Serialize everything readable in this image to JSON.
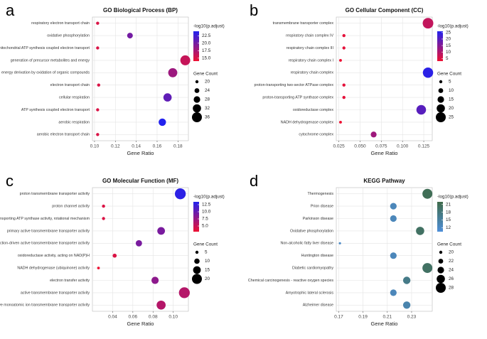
{
  "chart_data": [
    {
      "type": "dot",
      "panel": "a",
      "title": "GO Biological Process (BP)",
      "xlabel": "Gene Ratio",
      "categories": [
        "respiratory electron transport chain",
        "oxidative phosphorylation",
        "mitochondrial ATP synthesis coupled electron transport",
        "generation of precursor metabolites and energy",
        "energy derivation by oxidation of organic compounds",
        "electron transport chain",
        "cellular respiration",
        "ATP synthesis coupled electron transport",
        "aerobic respiration",
        "aerobic electron transport chain"
      ],
      "x": [
        0.103,
        0.134,
        0.103,
        0.187,
        0.175,
        0.104,
        0.17,
        0.103,
        0.165,
        0.103
      ],
      "color_values": [
        15,
        20,
        15,
        16,
        18,
        15,
        21,
        15,
        24,
        15
      ],
      "size_values": [
        20,
        26,
        20,
        36,
        34,
        20,
        32,
        20,
        30,
        20
      ],
      "xlim": [
        0.098,
        0.19
      ],
      "xticks": [
        {
          "value": 0.1,
          "label": "0.10"
        },
        0.12,
        0.14,
        0.16,
        0.18
      ],
      "color_title": "-log10(p.adjust)",
      "clim": [
        14,
        24
      ],
      "colors": [
        "#ee1133",
        "#2222ee"
      ],
      "cticks": [
        {
          "value": 15,
          "label": "15.0"
        },
        17.5,
        {
          "value": 20,
          "label": "20.0"
        },
        22.5
      ],
      "size_title": "Gene Count",
      "sticks": [
        20,
        24,
        28,
        32,
        36
      ]
    },
    {
      "type": "dot",
      "panel": "b",
      "title": "GO Cellular Component (CC)",
      "xlabel": "Gene Ratio",
      "categories": [
        "transmembrane transporter complex",
        "respiratory chain complex IV",
        "respiratory chain complex III",
        "respiratory chain complex I",
        "respiratory chain complex",
        "proton-transporting two-sector ATPase complex",
        "proton-transporting ATP synthase complex",
        "oxidoreductase complex",
        "NADH dehydrogenase complex",
        "cytochrome complex"
      ],
      "x": [
        0.13,
        0.031,
        0.031,
        0.027,
        0.13,
        0.031,
        0.031,
        0.122,
        0.027,
        0.066
      ],
      "color_values": [
        8,
        4,
        4,
        3,
        25,
        4,
        4,
        20,
        3,
        12
      ],
      "size_values": [
        27,
        5,
        5,
        4,
        26,
        5,
        5,
        24,
        4,
        13
      ],
      "xlim": [
        0.022,
        0.135
      ],
      "xticks": [
        0.025,
        {
          "value": 0.05,
          "label": "0.050"
        },
        0.075,
        {
          "value": 0.1,
          "label": "0.100"
        },
        0.125
      ],
      "color_title": "-log10(p.adjust)",
      "clim": [
        3,
        26
      ],
      "colors": [
        "#ee1133",
        "#2222ee"
      ],
      "cticks": [
        5,
        10,
        15,
        20,
        25
      ],
      "size_title": "Gene Count",
      "sticks": [
        5,
        10,
        15,
        20,
        25
      ]
    },
    {
      "type": "dot",
      "panel": "c",
      "title": "GO Molecular Function (MF)",
      "xlabel": "Gene Ratio",
      "categories": [
        "proton transmembrane transporter activity",
        "proton channel activity",
        "proton-transporting ATP synthase activity, rotational mechanism",
        "primary active transmembrane transporter activity",
        "oxidoreduction-driven active transmembrane transporter activity",
        "oxidoreductase activity, acting on NAD(P)H",
        "NADH dehydrogenase (ubiquinone) activity",
        "electron transfer activity",
        "active transmembrane transporter activity",
        "active monoatomic ion transmembrane transporter activity"
      ],
      "x": [
        0.107,
        0.031,
        0.031,
        0.088,
        0.066,
        0.042,
        0.026,
        0.082,
        0.111,
        0.088
      ],
      "color_values": [
        13,
        4,
        4,
        9,
        9,
        4,
        3,
        8,
        6,
        6
      ],
      "size_values": [
        22,
        5,
        5,
        15,
        12,
        7,
        4,
        14,
        22,
        18
      ],
      "xlim": [
        0.02,
        0.115
      ],
      "xticks": [
        0.04,
        0.06,
        0.08,
        {
          "value": 0.1,
          "label": "0.10"
        }
      ],
      "color_title": "-log10(p.adjust)",
      "clim": [
        3,
        13.5
      ],
      "colors": [
        "#ee1133",
        "#2222ee"
      ],
      "cticks": [
        {
          "value": 5,
          "label": "5.0"
        },
        7.5,
        {
          "value": 10,
          "label": "10.0"
        },
        12.5
      ],
      "size_title": "Gene Count",
      "sticks": [
        5,
        10,
        15,
        20
      ]
    },
    {
      "type": "dot",
      "panel": "d",
      "title": "KEGG Pathway",
      "xlabel": "Gene Ratio",
      "categories": [
        "Thermogenesis",
        "Prion disease",
        "Parkinson disease",
        "Oxidative phosphorylation",
        "Non-alcoholic fatty liver disease",
        "Huntington disease",
        "Diabetic cardiomyopathy",
        "Chemical carcinogenesis - reactive oxygen species",
        "Amyotrophic lateral sclerosis",
        "Alzheimer disease"
      ],
      "x": [
        0.243,
        0.215,
        0.215,
        0.237,
        0.171,
        0.215,
        0.243,
        0.226,
        0.215,
        0.226
      ],
      "color_values": [
        21,
        13,
        13,
        20,
        12,
        13,
        20,
        17,
        13,
        14
      ],
      "size_values": [
        28,
        24,
        24,
        26,
        19,
        24,
        28,
        25,
        24,
        25
      ],
      "xlim": [
        0.168,
        0.247
      ],
      "xticks": [
        0.17,
        0.19,
        0.21,
        0.23
      ],
      "color_title": "-log10(p.adjust)",
      "clim": [
        10.5,
        22
      ],
      "colors": [
        "#4f8fd9",
        "#3f6b4a"
      ],
      "cticks": [
        12,
        15,
        18,
        21
      ],
      "size_title": "Gene Count",
      "sticks": [
        20,
        22,
        24,
        26,
        28
      ]
    }
  ]
}
